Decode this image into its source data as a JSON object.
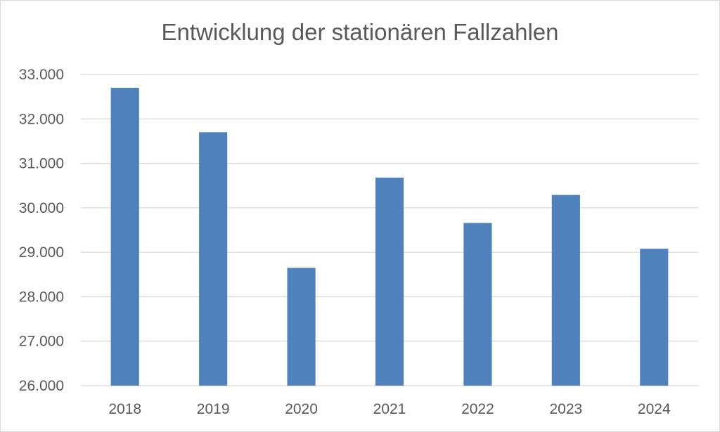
{
  "chart_data": {
    "type": "bar",
    "title": "Entwicklung der stationären Fallzahlen",
    "xlabel": "",
    "ylabel": "",
    "categories": [
      "2018",
      "2019",
      "2020",
      "2021",
      "2022",
      "2023",
      "2024"
    ],
    "values": [
      32700,
      31700,
      28650,
      30680,
      29660,
      30290,
      29080
    ],
    "ylim": [
      26000,
      33000
    ],
    "y_ticks": [
      26000,
      27000,
      28000,
      29000,
      30000,
      31000,
      32000,
      33000
    ],
    "y_tick_labels": [
      "26.000",
      "27.000",
      "28.000",
      "29.000",
      "30.000",
      "31.000",
      "32.000",
      "33.000"
    ],
    "grid": true,
    "legend": "none",
    "bar_color": "#4f81bd",
    "grid_color": "#d9d9d9",
    "text_color": "#595959"
  }
}
